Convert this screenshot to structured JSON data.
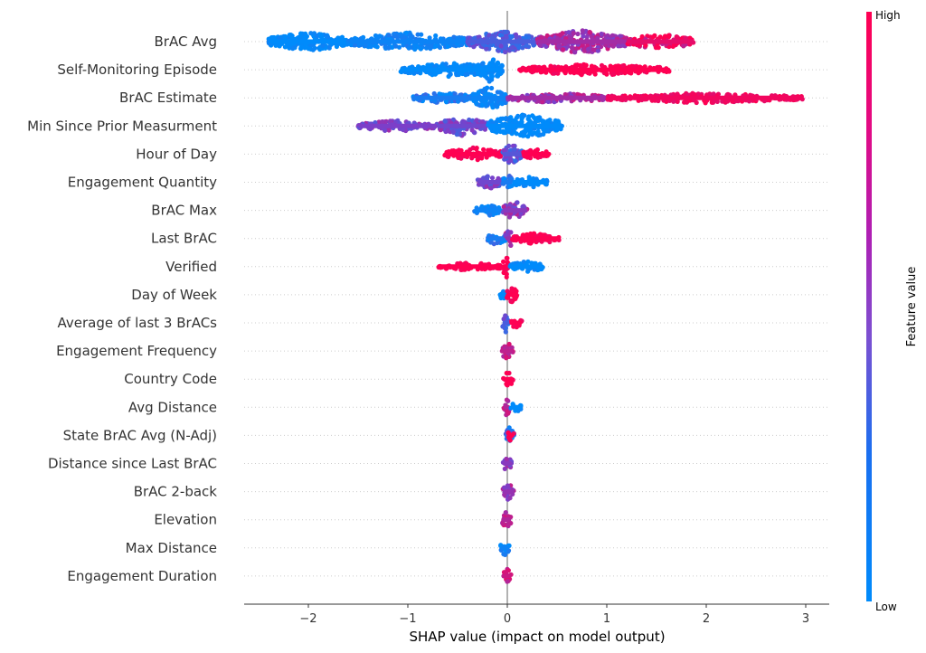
{
  "chart_data": {
    "type": "scatter",
    "subtype": "shap-beeswarm-summary",
    "title": "",
    "xlabel": "SHAP value (impact on model output)",
    "ylabel": "",
    "xlim": [
      -2.65,
      3.23
    ],
    "xticks": [
      -2,
      -1,
      0,
      1,
      2,
      3
    ],
    "xtick_labels": [
      "−2",
      "−1",
      "0",
      "1",
      "2",
      "3"
    ],
    "grid": "dotted horizontal row guides",
    "colorbar": {
      "title": "Feature value",
      "high_label": "High",
      "low_label": "Low",
      "low_color": "#008bfb",
      "mid_color": "#7c3fc9",
      "high_color": "#ff0052",
      "placement": "right"
    },
    "features": [
      {
        "name": "BrAC Avg",
        "min": -2.4,
        "max": 1.88,
        "clusters": [
          [
            -2.4,
            -1.6,
            0.0,
            0.8
          ],
          [
            -1.6,
            -0.4,
            0.05,
            0.7
          ],
          [
            -0.4,
            0.3,
            0.3,
            0.9
          ],
          [
            0.3,
            1.2,
            0.65,
            1.0
          ],
          [
            1.2,
            1.88,
            0.9,
            0.6
          ]
        ]
      },
      {
        "name": "Self-Monitoring Episode",
        "min": -1.08,
        "max": 1.63,
        "clusters": [
          [
            -1.08,
            -0.05,
            0.0,
            0.5
          ],
          [
            -0.3,
            -0.05,
            0.0,
            1.0
          ],
          [
            0.1,
            1.63,
            1.0,
            0.35
          ]
        ]
      },
      {
        "name": "BrAC Estimate",
        "min": -0.95,
        "max": 2.97,
        "clusters": [
          [
            -0.95,
            -0.35,
            0.1,
            0.35
          ],
          [
            -0.35,
            0.0,
            0.05,
            1.0
          ],
          [
            0.0,
            1.0,
            0.65,
            0.3
          ],
          [
            1.0,
            2.97,
            0.95,
            0.3
          ]
        ]
      },
      {
        "name": "Min Since Prior Measurment",
        "min": -1.5,
        "max": 0.55,
        "clusters": [
          [
            -1.5,
            -0.7,
            0.5,
            0.35
          ],
          [
            -0.7,
            -0.2,
            0.45,
            0.8
          ],
          [
            -0.2,
            0.55,
            0.0,
            1.0
          ]
        ]
      },
      {
        "name": "Hour of Day",
        "min": -0.63,
        "max": 0.42,
        "clusters": [
          [
            -0.63,
            -0.05,
            1.0,
            0.45
          ],
          [
            -0.05,
            0.15,
            0.35,
            0.9
          ],
          [
            0.15,
            0.42,
            1.0,
            0.35
          ]
        ]
      },
      {
        "name": "Engagement Quantity",
        "min": -0.3,
        "max": 0.4,
        "clusters": [
          [
            -0.3,
            -0.05,
            0.45,
            0.45
          ],
          [
            -0.05,
            0.05,
            0.1,
            0.8
          ],
          [
            0.05,
            0.4,
            0.0,
            0.35
          ]
        ]
      },
      {
        "name": "BrAC Max",
        "min": -0.33,
        "max": 0.2,
        "clusters": [
          [
            -0.33,
            -0.05,
            0.05,
            0.35
          ],
          [
            -0.05,
            0.2,
            0.55,
            0.7
          ]
        ]
      },
      {
        "name": "Last BrAC",
        "min": -0.2,
        "max": 0.52,
        "clusters": [
          [
            -0.2,
            -0.02,
            0.1,
            0.45
          ],
          [
            -0.02,
            0.05,
            0.6,
            0.9
          ],
          [
            0.05,
            0.52,
            1.0,
            0.35
          ]
        ]
      },
      {
        "name": "Verified",
        "min": -0.7,
        "max": 0.37,
        "clusters": [
          [
            -0.7,
            -0.05,
            1.0,
            0.2
          ],
          [
            -0.05,
            0.02,
            1.0,
            1.0
          ],
          [
            0.02,
            0.37,
            0.0,
            0.35
          ]
        ]
      },
      {
        "name": "Day of Week",
        "min": -0.08,
        "max": 0.1,
        "clusters": [
          [
            -0.08,
            -0.01,
            0.0,
            0.3
          ],
          [
            -0.01,
            0.1,
            1.0,
            0.7
          ]
        ]
      },
      {
        "name": "Average of last 3 BrACs",
        "min": -0.05,
        "max": 0.15,
        "clusters": [
          [
            -0.05,
            0.02,
            0.3,
            0.7
          ],
          [
            0.02,
            0.15,
            1.0,
            0.3
          ]
        ]
      },
      {
        "name": "Engagement Frequency",
        "min": -0.06,
        "max": 0.06,
        "clusters": [
          [
            -0.06,
            0.06,
            0.75,
            0.7
          ]
        ]
      },
      {
        "name": "Country Code",
        "min": -0.04,
        "max": 0.06,
        "clusters": [
          [
            -0.04,
            0.06,
            1.0,
            0.6
          ]
        ]
      },
      {
        "name": "Avg Distance",
        "min": -0.04,
        "max": 0.14,
        "clusters": [
          [
            -0.04,
            0.03,
            0.7,
            0.7
          ],
          [
            0.03,
            0.14,
            0.0,
            0.3
          ]
        ]
      },
      {
        "name": "State BrAC Avg (N-Adj)",
        "min": -0.03,
        "max": 0.07,
        "clusters": [
          [
            -0.03,
            0.07,
            0.2,
            0.6
          ],
          [
            0.0,
            0.07,
            1.0,
            0.3
          ]
        ]
      },
      {
        "name": "Distance since Last BrAC",
        "min": -0.05,
        "max": 0.05,
        "clusters": [
          [
            -0.05,
            0.05,
            0.55,
            0.6
          ]
        ]
      },
      {
        "name": "BrAC 2-back",
        "min": -0.05,
        "max": 0.07,
        "clusters": [
          [
            -0.05,
            0.07,
            0.6,
            0.6
          ]
        ]
      },
      {
        "name": "Elevation",
        "min": -0.06,
        "max": 0.04,
        "clusters": [
          [
            -0.06,
            0.04,
            0.7,
            0.6
          ]
        ]
      },
      {
        "name": "Max Distance",
        "min": -0.07,
        "max": 0.02,
        "clusters": [
          [
            -0.07,
            0.02,
            0.05,
            0.6
          ]
        ]
      },
      {
        "name": "Engagement Duration",
        "min": -0.04,
        "max": 0.04,
        "clusters": [
          [
            -0.04,
            0.04,
            0.8,
            0.6
          ]
        ]
      }
    ],
    "cluster_format": "[x_start, x_end, color_value_0_low_to_1_high, relative_density]"
  }
}
